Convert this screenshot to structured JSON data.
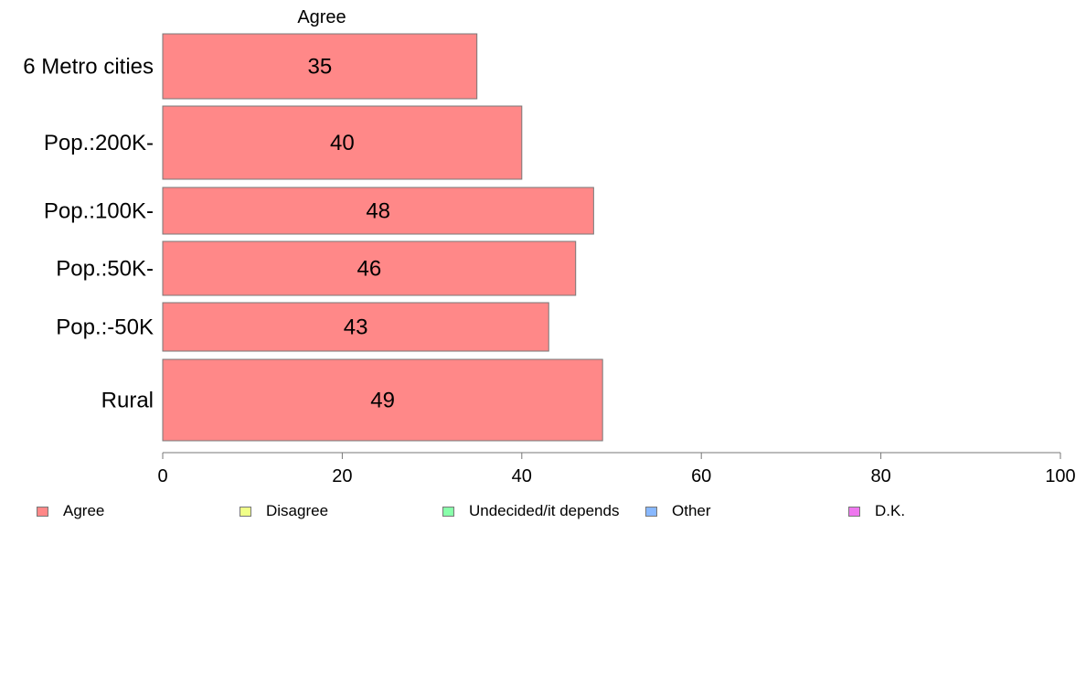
{
  "chart_data": {
    "type": "bar",
    "orientation": "horizontal",
    "title": "Agree",
    "categories": [
      "6 Metro cities",
      "Pop.:200K-",
      "Pop.:100K-",
      "Pop.:50K-",
      "Pop.:-50K",
      "Rural"
    ],
    "series": [
      {
        "name": "Agree",
        "values": [
          35,
          40,
          48,
          46,
          43,
          49
        ],
        "color": "#ff8888"
      }
    ],
    "xlim": [
      0,
      100
    ],
    "xticks": [
      0,
      20,
      40,
      60,
      80,
      100
    ],
    "grid": false,
    "legend": {
      "position": "bottom",
      "entries": [
        {
          "label": "Agree",
          "color": "#ff8888"
        },
        {
          "label": "Disagree",
          "color": "#f0ff88"
        },
        {
          "label": "Undecided/it depends",
          "color": "#88ffaa"
        },
        {
          "label": "Other",
          "color": "#88b8ff"
        },
        {
          "label": "D.K.",
          "color": "#ee77ee"
        }
      ]
    }
  }
}
